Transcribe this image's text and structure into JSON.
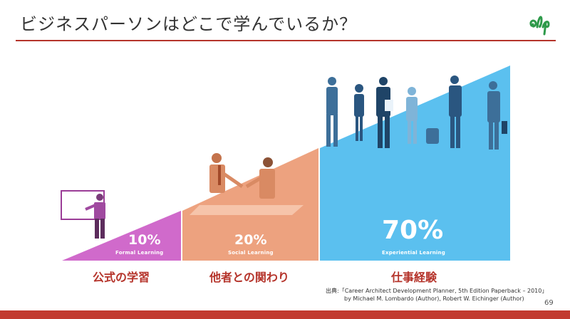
{
  "slide": {
    "title": "ビジネスパーソンはどこで学んでいるか？",
    "logo_text": "elp",
    "page_number": "69"
  },
  "segments": [
    {
      "percent": "10%",
      "label_en": "Formal Learning",
      "label_jp": "公式の学習",
      "color": "#d06acb",
      "value": 10
    },
    {
      "percent": "20%",
      "label_en": "Social Learning",
      "label_jp": "他者との関わり",
      "color": "#eda27f",
      "value": 20
    },
    {
      "percent": "70%",
      "label_en": "Experiential Learning",
      "label_jp": "仕事経験",
      "color": "#5bc0ef",
      "value": 70
    }
  ],
  "source": {
    "line1": "出典:「Career Architect Development Planner, 5th Edition Paperback – 2010」",
    "line2": "by Michael M. Lombardo (Author), Robert W. Eichinger (Author)"
  },
  "colors": {
    "accent": "#b5342b",
    "title_text": "#333333",
    "logo": "#2e9a4a"
  }
}
